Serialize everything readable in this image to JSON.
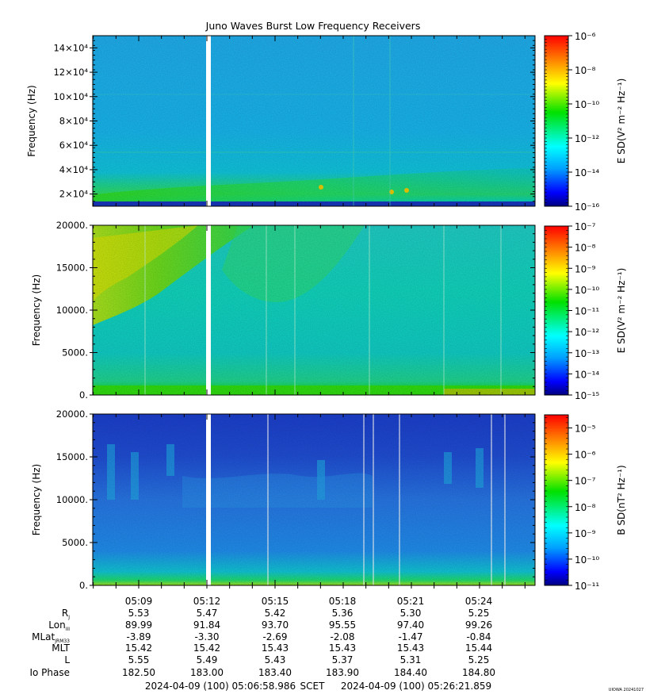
{
  "title": "Juno Waves Burst Low Frequency Receivers",
  "watermark": "UIOWA 20241027",
  "chart_data": [
    {
      "type": "heatmap",
      "ylabel": "Frequency (Hz)",
      "ytick_labels": [
        "2×10⁴",
        "4×10⁴",
        "6×10⁴",
        "8×10⁴",
        "10×10⁴",
        "12×10⁴",
        "14×10⁴"
      ],
      "yticks": [
        20000,
        40000,
        60000,
        80000,
        100000,
        120000,
        140000
      ],
      "ylim": [
        10000,
        150000
      ],
      "colorbar_label": "E SD(V² m⁻² Hz⁻¹)",
      "colorbar_ticks": [
        "10⁻¹⁶",
        "10⁻¹⁴",
        "10⁻¹²",
        "10⁻¹⁰",
        "10⁻⁸",
        "10⁻⁶"
      ],
      "colorbar_range_log": [
        -16,
        -6
      ]
    },
    {
      "type": "heatmap",
      "ylabel": "Frequency (Hz)",
      "ytick_labels": [
        "0.",
        "5000.",
        "10000.",
        "15000.",
        "20000."
      ],
      "yticks": [
        0,
        5000,
        10000,
        15000,
        20000
      ],
      "ylim": [
        0,
        20000
      ],
      "colorbar_label": "E SD(V² m⁻² Hz⁻¹)",
      "colorbar_ticks": [
        "10⁻¹⁵",
        "10⁻¹⁴",
        "10⁻¹³",
        "10⁻¹²",
        "10⁻¹¹",
        "10⁻¹⁰",
        "10⁻⁹",
        "10⁻⁸",
        "10⁻⁷"
      ],
      "colorbar_range_log": [
        -15,
        -7
      ]
    },
    {
      "type": "heatmap",
      "ylabel": "Frequency (Hz)",
      "ytick_labels": [
        "0.",
        "5000.",
        "10000.",
        "15000.",
        "20000."
      ],
      "yticks": [
        0,
        5000,
        10000,
        15000,
        20000
      ],
      "ylim": [
        0,
        20000
      ],
      "colorbar_label": "B SD(nT² Hz⁻¹)",
      "colorbar_ticks": [
        "10⁻¹¹",
        "10⁻¹⁰",
        "10⁻⁹",
        "10⁻⁸",
        "10⁻⁷",
        "10⁻⁶",
        "10⁻⁵"
      ],
      "colorbar_range_log": [
        -11,
        -4.5
      ]
    }
  ],
  "time_axis": {
    "tick_labels": [
      "05:09",
      "05:12",
      "05:15",
      "05:18",
      "05:21",
      "05:24"
    ],
    "rows": [
      {
        "label": "R",
        "sub": "J",
        "values": [
          "5.53",
          "5.47",
          "5.42",
          "5.36",
          "5.30",
          "5.25"
        ]
      },
      {
        "label": "Lon",
        "sub": "III",
        "values": [
          "89.99",
          "91.84",
          "93.70",
          "95.55",
          "97.40",
          "99.26"
        ]
      },
      {
        "label": "MLat",
        "sub": "JRM33",
        "values": [
          "-3.89",
          "-3.30",
          "-2.69",
          "-2.08",
          "-1.47",
          "-0.84"
        ]
      },
      {
        "label": "MLT",
        "sub": "",
        "values": [
          "15.42",
          "15.42",
          "15.43",
          "15.43",
          "15.43",
          "15.44"
        ]
      },
      {
        "label": "L",
        "sub": "",
        "values": [
          "5.55",
          "5.49",
          "5.43",
          "5.37",
          "5.31",
          "5.25"
        ]
      },
      {
        "label": "Io Phase",
        "sub": "",
        "values": [
          "182.50",
          "183.00",
          "183.40",
          "183.90",
          "184.40",
          "184.80"
        ]
      }
    ],
    "scet_start": "2024-04-09 (100) 05:06:58.986",
    "scet_label": "SCET",
    "scet_end": "2024-04-09 (100) 05:26:21.859"
  }
}
